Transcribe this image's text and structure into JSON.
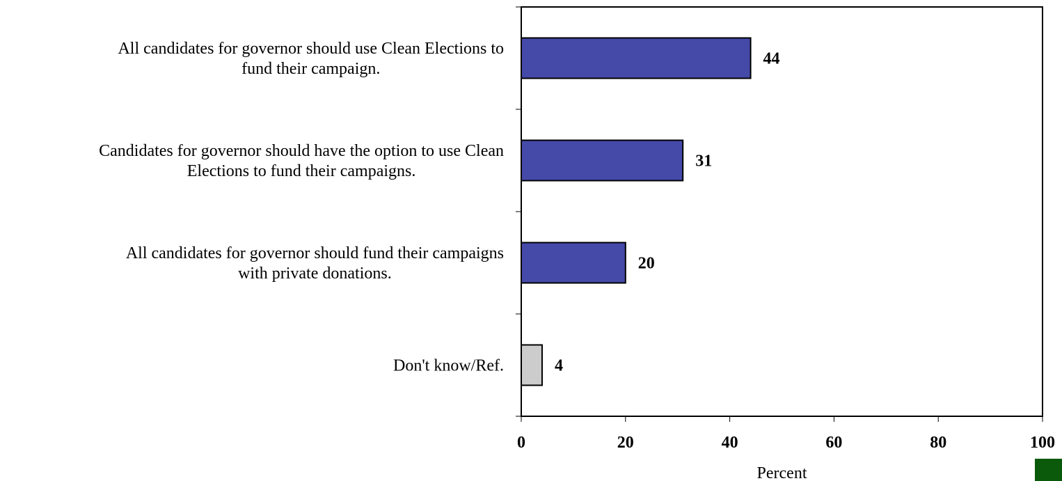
{
  "chart_data": {
    "type": "bar",
    "orientation": "horizontal",
    "categories": [
      [
        "All candidates for governor should use Clean Elections to",
        "fund their campaign."
      ],
      [
        "Candidates for governor should have the option to use Clean",
        "Elections to fund their campaigns."
      ],
      [
        "All candidates for governor should fund their campaigns",
        "with private donations."
      ],
      [
        "Don't know/Ref."
      ]
    ],
    "values": [
      44,
      31,
      20,
      4
    ],
    "value_labels": [
      "44",
      "31",
      "20",
      "4"
    ],
    "bar_colors": [
      "#4549a8",
      "#4549a8",
      "#4549a8",
      "#cccccc"
    ],
    "xlabel": "Percent",
    "ylabel": "",
    "xlim": [
      0,
      100
    ],
    "xticks": [
      0,
      20,
      40,
      60,
      80,
      100
    ],
    "xtick_labels": [
      "0",
      "20",
      "40",
      "60",
      "80",
      "100"
    ],
    "grid": false,
    "legend": "none"
  },
  "corner_mark": {
    "color": "#0b5a0b"
  }
}
